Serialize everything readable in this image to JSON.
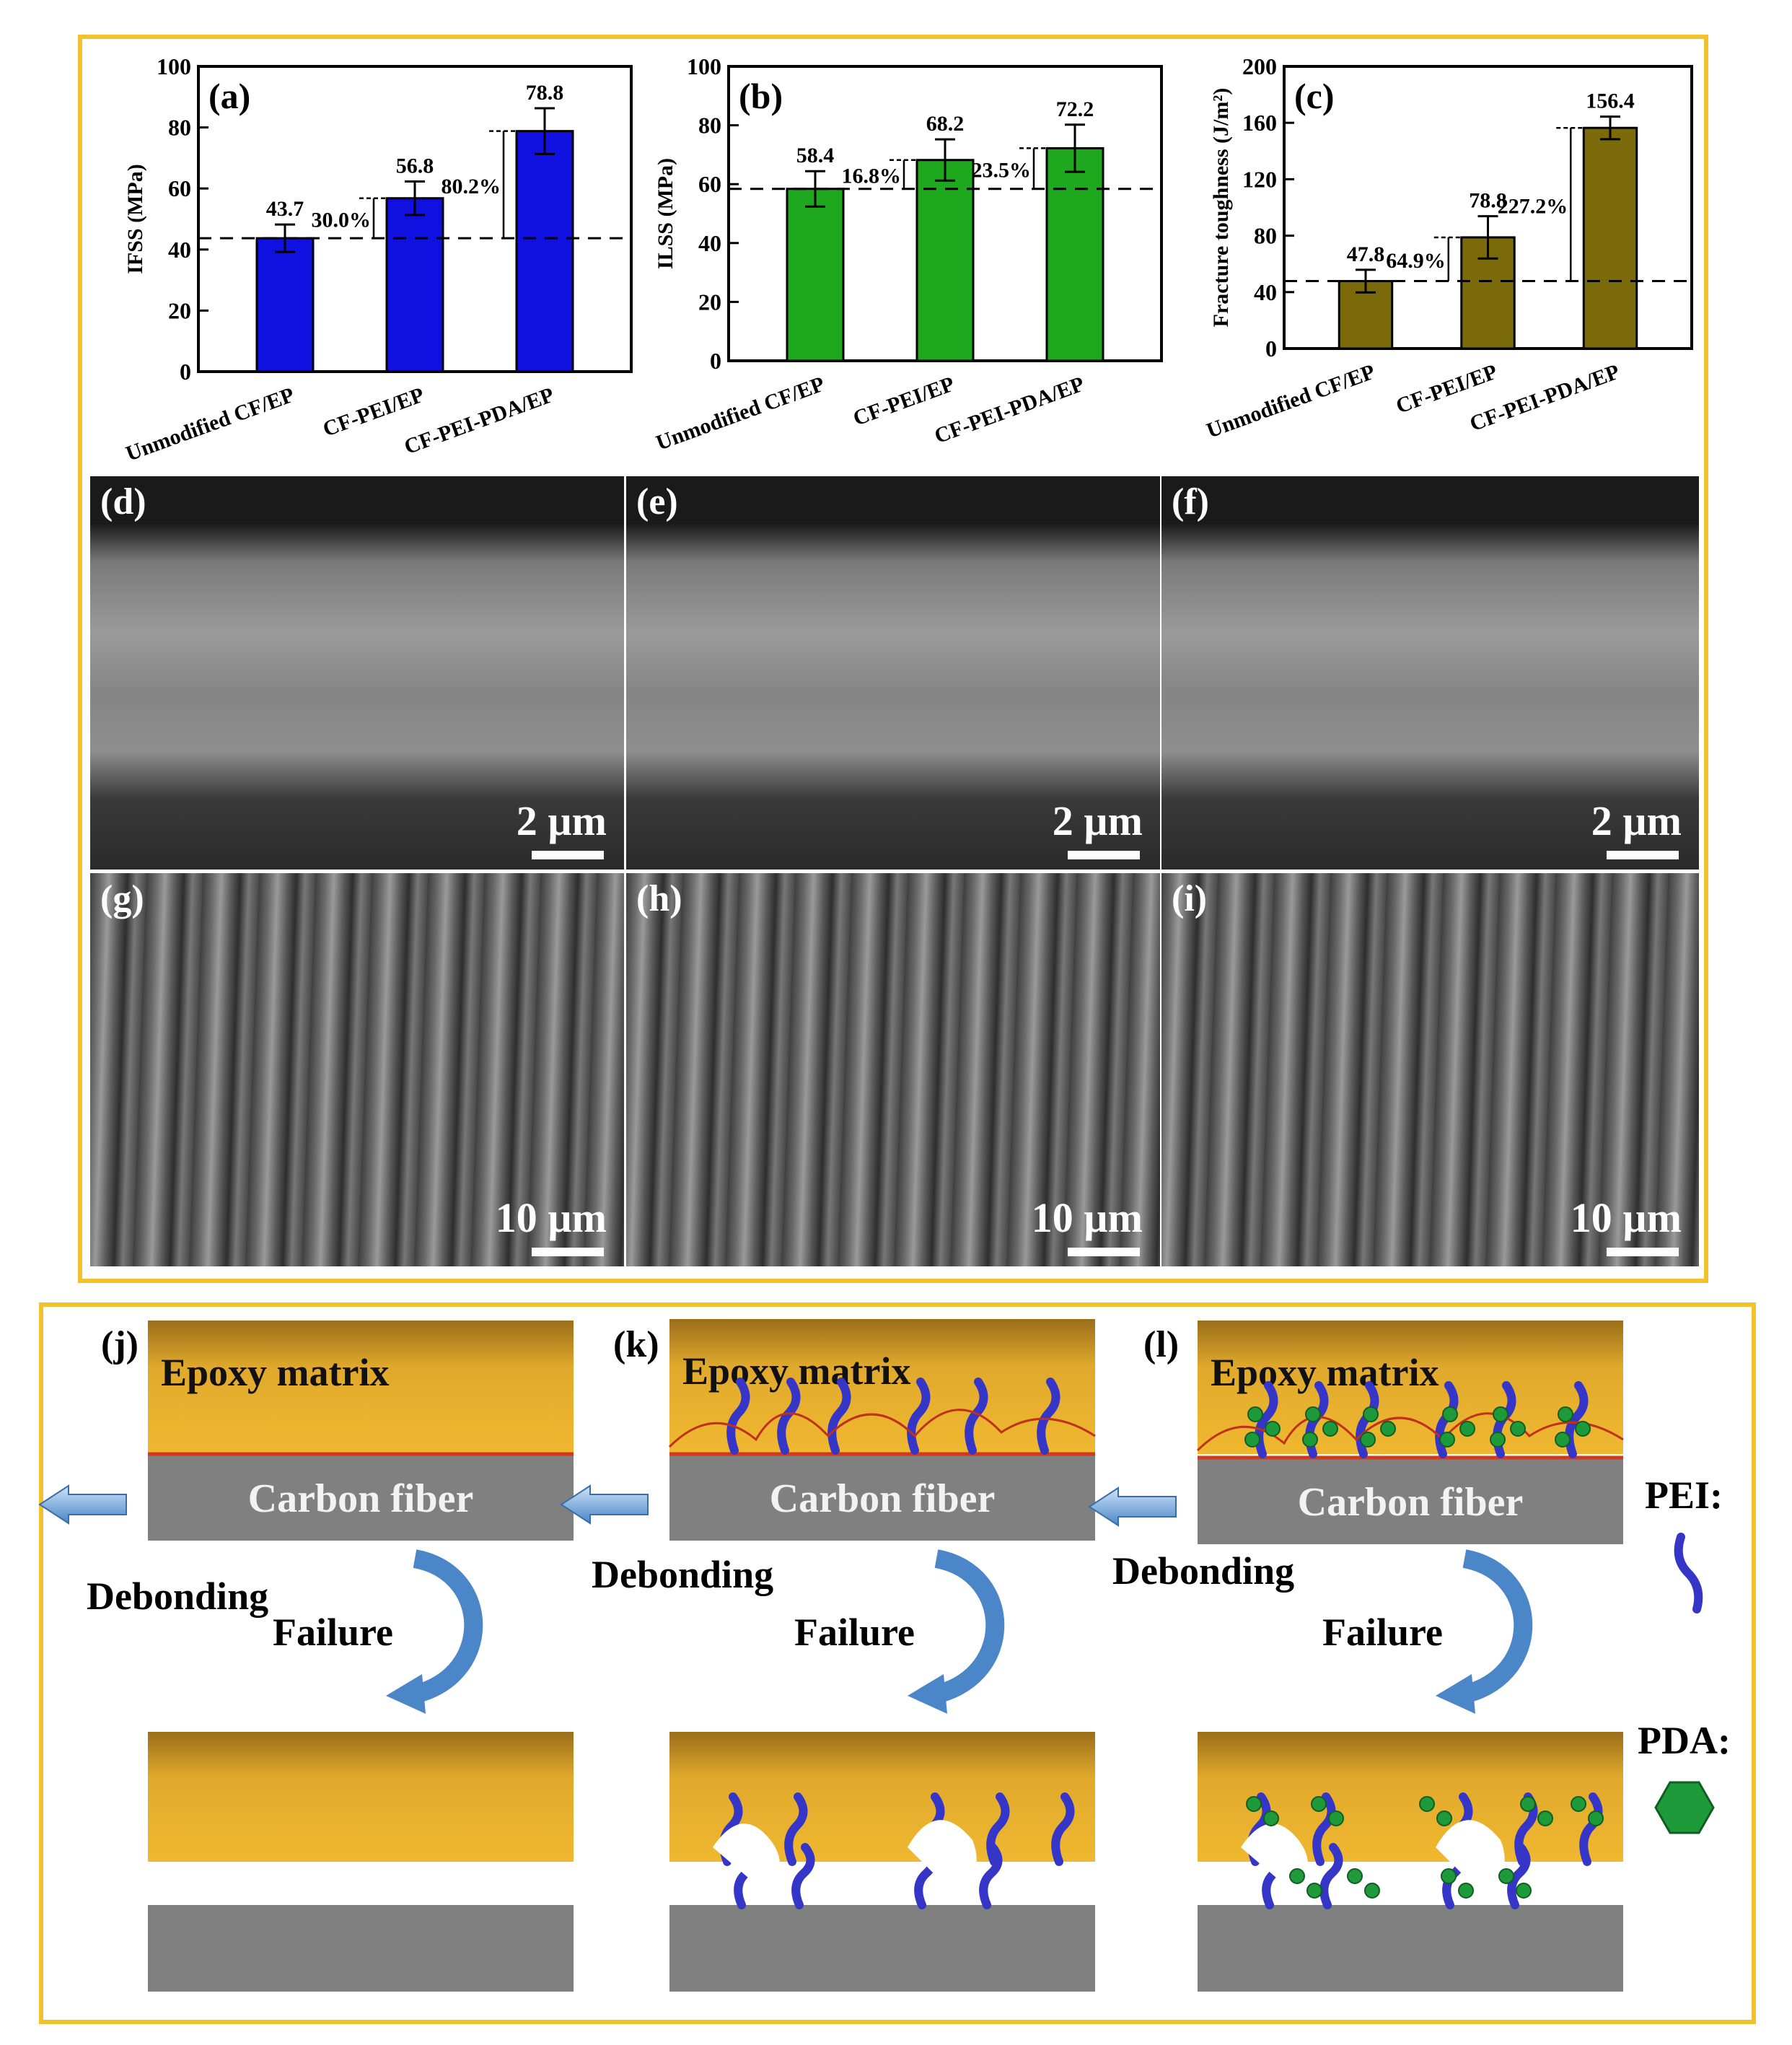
{
  "chart_data": [
    {
      "type": "bar",
      "panel": "(a)",
      "ylabel": "IFSS (MPa)",
      "categories": [
        "Unmodified CF/EP",
        "CF-PEI/EP",
        "CF-PEI-PDA/EP"
      ],
      "values": [
        43.7,
        56.8,
        78.8
      ],
      "errors": [
        4.5,
        5.5,
        7.5
      ],
      "value_labels": [
        "43.7",
        "56.8",
        "78.8"
      ],
      "ylim": [
        0,
        100
      ],
      "yticks": [
        0,
        20,
        40,
        60,
        80,
        100
      ],
      "baseline": 43.7,
      "increase_labels": [
        "30.0%",
        "80.2%"
      ],
      "color": "#1010e0"
    },
    {
      "type": "bar",
      "panel": "(b)",
      "ylabel": "ILSS (MPa)",
      "categories": [
        "Unmodified CF/EP",
        "CF-PEI/EP",
        "CF-PEI-PDA/EP"
      ],
      "values": [
        58.4,
        68.2,
        72.2
      ],
      "errors": [
        6.0,
        7.0,
        8.0
      ],
      "value_labels": [
        "58.4",
        "68.2",
        "72.2"
      ],
      "ylim": [
        0,
        100
      ],
      "yticks": [
        0,
        20,
        40,
        60,
        80,
        100
      ],
      "baseline": 58.4,
      "increase_labels": [
        "16.8%",
        "23.5%"
      ],
      "color": "#1ea81e"
    },
    {
      "type": "bar",
      "panel": "(c)",
      "ylabel": "Fracture toughness (J/m²)",
      "categories": [
        "Unmodified CF/EP",
        "CF-PEI/EP",
        "CF-PEI-PDA/EP"
      ],
      "values": [
        47.8,
        78.8,
        156.4
      ],
      "errors": [
        8.0,
        15.0,
        8.0
      ],
      "value_labels": [
        "47.8",
        "78.8",
        "156.4"
      ],
      "ylim": [
        0,
        200
      ],
      "yticks": [
        0,
        40,
        80,
        120,
        160,
        200
      ],
      "baseline": 47.8,
      "increase_labels": [
        "64.9%",
        "227.2%"
      ],
      "color": "#7a6a0a"
    }
  ],
  "sem_panels": [
    {
      "label": "(d)",
      "scale": "2 µm"
    },
    {
      "label": "(e)",
      "scale": "2 µm"
    },
    {
      "label": "(f)",
      "scale": "2 µm"
    },
    {
      "label": "(g)",
      "scale": "10 µm"
    },
    {
      "label": "(h)",
      "scale": "10 µm"
    },
    {
      "label": "(i)",
      "scale": "10 µm"
    }
  ],
  "schematic": {
    "panels": [
      "(j)",
      "(k)",
      "(l)"
    ],
    "epoxy_label": "Epoxy matrix",
    "fiber_label": "Carbon fiber",
    "debonding_label": "Debonding",
    "failure_label": "Failure",
    "legend_pei": "PEI:",
    "legend_pda": "PDA:",
    "colors": {
      "epoxy": "#f0b830",
      "fiber": "#808080",
      "pei": "#3535c8",
      "pda": "#1f9a3a",
      "frame": "#f2c12e"
    }
  }
}
